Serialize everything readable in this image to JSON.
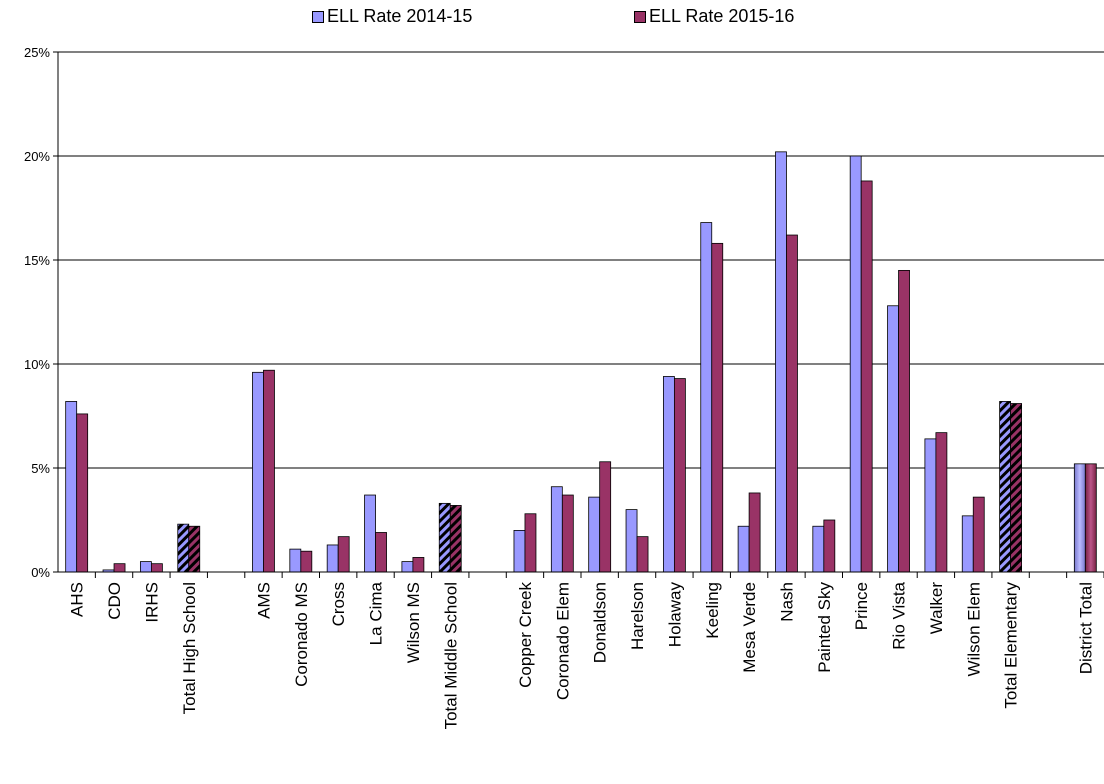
{
  "chart_data": {
    "type": "bar",
    "title": "",
    "xlabel": "",
    "ylabel": "",
    "ylim": [
      0,
      25
    ],
    "yticks": [
      "0%",
      "5%",
      "10%",
      "15%",
      "20%",
      "25%"
    ],
    "grid": true,
    "legend_position": "top-center",
    "colors": {
      "series1": "#9999ff",
      "series2": "#993366",
      "subtotal_pattern": "#000000"
    },
    "categories": [
      "AHS",
      "CDO",
      "IRHS",
      "Total High School",
      "",
      "AMS",
      "Coronado MS",
      "Cross",
      "La Cima",
      "Wilson MS",
      "Total Middle School",
      "",
      "Copper Creek",
      "Coronado Elem",
      "Donaldson",
      "Harelson",
      "Holaway",
      "Keeling",
      "Mesa Verde",
      "Nash",
      "Painted Sky",
      "Prince",
      "Rio Vista",
      "Walker",
      "Wilson Elem",
      "Total Elementary",
      "",
      "District Total"
    ],
    "series": [
      {
        "name": "ELL Rate 2014-15",
        "values": [
          8.2,
          0.1,
          0.5,
          2.3,
          null,
          9.6,
          1.1,
          1.3,
          3.7,
          0.5,
          3.3,
          null,
          2.0,
          4.1,
          3.6,
          3.0,
          9.4,
          16.8,
          2.2,
          20.2,
          2.2,
          20.0,
          12.8,
          6.4,
          2.7,
          8.2,
          null,
          5.2
        ]
      },
      {
        "name": "ELL Rate 2015-16",
        "values": [
          7.6,
          0.4,
          0.4,
          2.2,
          null,
          9.7,
          1.0,
          1.7,
          1.9,
          0.7,
          3.2,
          null,
          2.8,
          3.7,
          5.3,
          1.7,
          9.3,
          15.8,
          3.8,
          16.2,
          2.5,
          18.8,
          14.5,
          6.7,
          3.6,
          8.1,
          null,
          5.2
        ]
      }
    ],
    "subtotal_categories": [
      "Total High School",
      "Total Middle School",
      "Total Elementary"
    ],
    "total_categories": [
      "District Total"
    ]
  }
}
